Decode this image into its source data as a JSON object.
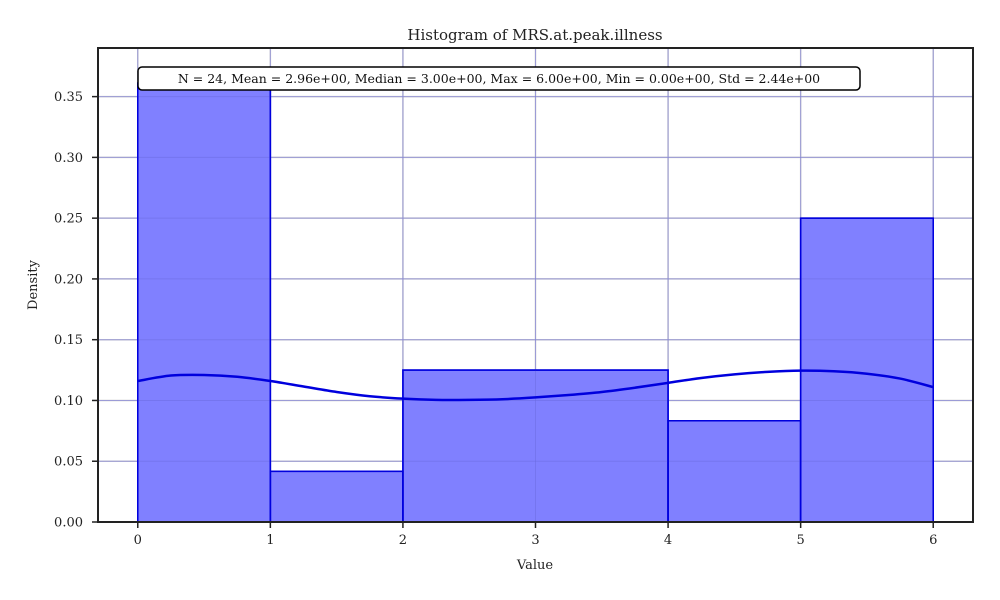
{
  "chart_data": {
    "type": "histogram",
    "title": "Histogram of MRS.at.peak.illness",
    "xlabel": "Value",
    "ylabel": "Density",
    "xlim": [
      -0.3,
      6.3
    ],
    "ylim": [
      0.0,
      0.39
    ],
    "xticks": [
      0,
      1,
      2,
      3,
      4,
      5,
      6
    ],
    "yticks": [
      0.0,
      0.05,
      0.1,
      0.15,
      0.2,
      0.25,
      0.3,
      0.35
    ],
    "ytick_labels": [
      "0.00",
      "0.05",
      "0.10",
      "0.15",
      "0.20",
      "0.25",
      "0.30",
      "0.35"
    ],
    "grid": true,
    "bins": [
      {
        "x0": 0,
        "x1": 1,
        "density": 0.3611
      },
      {
        "x0": 1,
        "x1": 2,
        "density": 0.0417
      },
      {
        "x0": 2,
        "x1": 4,
        "density": 0.125
      },
      {
        "x0": 4,
        "x1": 5,
        "density": 0.0833
      },
      {
        "x0": 5,
        "x1": 6,
        "density": 0.25
      }
    ],
    "kde": {
      "x": [
        0,
        0.25,
        0.5,
        0.75,
        1.0,
        1.25,
        1.5,
        1.75,
        2.0,
        2.25,
        2.5,
        2.75,
        3.0,
        3.25,
        3.5,
        3.75,
        4.0,
        4.25,
        4.5,
        4.75,
        5.0,
        5.25,
        5.5,
        5.75,
        6.0
      ],
      "y": [
        0.116,
        0.1205,
        0.121,
        0.1195,
        0.116,
        0.1115,
        0.107,
        0.1035,
        0.1015,
        0.1005,
        0.1005,
        0.101,
        0.1025,
        0.1045,
        0.107,
        0.1105,
        0.1145,
        0.1185,
        0.1215,
        0.1235,
        0.1245,
        0.124,
        0.122,
        0.118,
        0.111
      ]
    },
    "stats_annotation": "N = 24, Mean = 2.96e+00, Median = 3.00e+00, Max = 6.00e+00, Min = 0.00e+00, Std = 2.44e+00",
    "colors": {
      "bar_fill": "#8080ff",
      "bar_edge": "#0000dd",
      "kde_line": "#0000dd",
      "grid": "#cccccc",
      "axis": "#222222"
    }
  }
}
